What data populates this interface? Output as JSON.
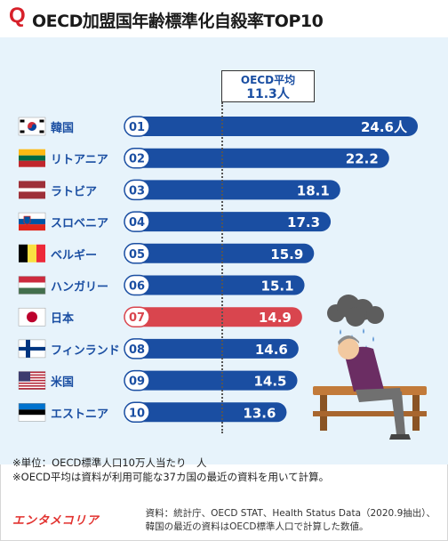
{
  "header": {
    "q": "Q",
    "title": "OECD加盟国年齢標準化自殺率TOP10"
  },
  "average": {
    "line1": "OECD平均",
    "line2": "11.3人",
    "value": 11.3
  },
  "colors": {
    "bar": "#1a4ea2",
    "highlight": "#d9454e",
    "panel": "#e7f3fb"
  },
  "chart_data": {
    "type": "bar",
    "orientation": "horizontal",
    "unit": "人",
    "categories": [
      "韓国",
      "リトアニア",
      "ラトビア",
      "スロベニア",
      "ベルギー",
      "ハンガリー",
      "日本",
      "フィンランド",
      "米国",
      "エストニア"
    ],
    "ranks": [
      "01",
      "02",
      "03",
      "04",
      "05",
      "06",
      "07",
      "08",
      "09",
      "10"
    ],
    "values": [
      24.6,
      22.2,
      18.1,
      17.3,
      15.9,
      15.1,
      14.9,
      14.6,
      14.5,
      13.6
    ],
    "value_labels": [
      "24.6人",
      "22.2",
      "18.1",
      "17.3",
      "15.9",
      "15.1",
      "14.9",
      "14.6",
      "14.5",
      "13.6"
    ],
    "highlight": "日本",
    "flags": [
      "kr-flag",
      "lt-flag",
      "lv-flag",
      "si-flag",
      "be-flag",
      "hu-flag",
      "jp-flag",
      "fi-flag",
      "us-flag",
      "ee-flag"
    ]
  },
  "notes": {
    "line1": "※単位：OECD標準人口10万人当たり　人",
    "line2": "※OECD平均は資料が利用可能な37カ国の最近の資料を用いて計算。"
  },
  "source": {
    "line1": "資料：統計庁、OECD STAT、Health Status Data（2020.9抽出）、",
    "line2": "韓国の最近の資料はOECD標準人口で計算した数値。"
  },
  "logo": "エンタメコリア"
}
